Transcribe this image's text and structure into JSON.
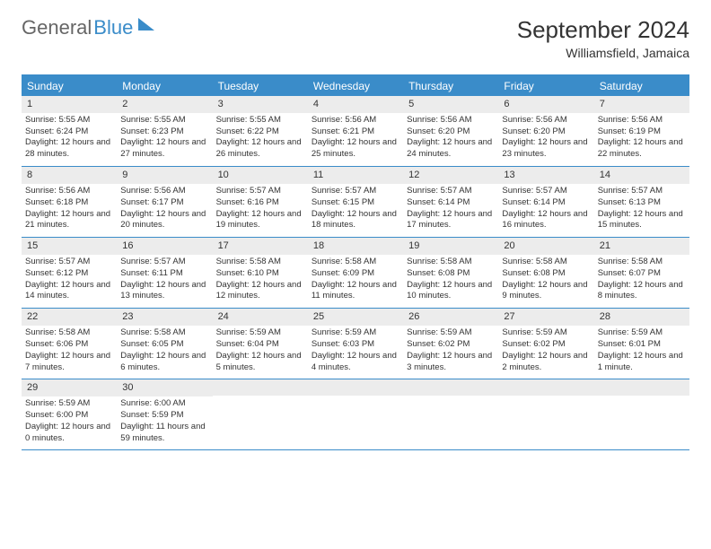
{
  "brand": {
    "general": "General",
    "blue": "Blue"
  },
  "title": "September 2024",
  "location": "Williamsfield, Jamaica",
  "colors": {
    "accent": "#3a8cc9",
    "dayHeaderBg": "#ececec",
    "background": "#ffffff",
    "text": "#333333"
  },
  "daysOfWeek": [
    "Sunday",
    "Monday",
    "Tuesday",
    "Wednesday",
    "Thursday",
    "Friday",
    "Saturday"
  ],
  "calendar": {
    "firstDayIndex": 0,
    "numDays": 30,
    "cells": [
      {
        "n": 1,
        "sunrise": "5:55 AM",
        "sunset": "6:24 PM",
        "daylight": "12 hours and 28 minutes."
      },
      {
        "n": 2,
        "sunrise": "5:55 AM",
        "sunset": "6:23 PM",
        "daylight": "12 hours and 27 minutes."
      },
      {
        "n": 3,
        "sunrise": "5:55 AM",
        "sunset": "6:22 PM",
        "daylight": "12 hours and 26 minutes."
      },
      {
        "n": 4,
        "sunrise": "5:56 AM",
        "sunset": "6:21 PM",
        "daylight": "12 hours and 25 minutes."
      },
      {
        "n": 5,
        "sunrise": "5:56 AM",
        "sunset": "6:20 PM",
        "daylight": "12 hours and 24 minutes."
      },
      {
        "n": 6,
        "sunrise": "5:56 AM",
        "sunset": "6:20 PM",
        "daylight": "12 hours and 23 minutes."
      },
      {
        "n": 7,
        "sunrise": "5:56 AM",
        "sunset": "6:19 PM",
        "daylight": "12 hours and 22 minutes."
      },
      {
        "n": 8,
        "sunrise": "5:56 AM",
        "sunset": "6:18 PM",
        "daylight": "12 hours and 21 minutes."
      },
      {
        "n": 9,
        "sunrise": "5:56 AM",
        "sunset": "6:17 PM",
        "daylight": "12 hours and 20 minutes."
      },
      {
        "n": 10,
        "sunrise": "5:57 AM",
        "sunset": "6:16 PM",
        "daylight": "12 hours and 19 minutes."
      },
      {
        "n": 11,
        "sunrise": "5:57 AM",
        "sunset": "6:15 PM",
        "daylight": "12 hours and 18 minutes."
      },
      {
        "n": 12,
        "sunrise": "5:57 AM",
        "sunset": "6:14 PM",
        "daylight": "12 hours and 17 minutes."
      },
      {
        "n": 13,
        "sunrise": "5:57 AM",
        "sunset": "6:14 PM",
        "daylight": "12 hours and 16 minutes."
      },
      {
        "n": 14,
        "sunrise": "5:57 AM",
        "sunset": "6:13 PM",
        "daylight": "12 hours and 15 minutes."
      },
      {
        "n": 15,
        "sunrise": "5:57 AM",
        "sunset": "6:12 PM",
        "daylight": "12 hours and 14 minutes."
      },
      {
        "n": 16,
        "sunrise": "5:57 AM",
        "sunset": "6:11 PM",
        "daylight": "12 hours and 13 minutes."
      },
      {
        "n": 17,
        "sunrise": "5:58 AM",
        "sunset": "6:10 PM",
        "daylight": "12 hours and 12 minutes."
      },
      {
        "n": 18,
        "sunrise": "5:58 AM",
        "sunset": "6:09 PM",
        "daylight": "12 hours and 11 minutes."
      },
      {
        "n": 19,
        "sunrise": "5:58 AM",
        "sunset": "6:08 PM",
        "daylight": "12 hours and 10 minutes."
      },
      {
        "n": 20,
        "sunrise": "5:58 AM",
        "sunset": "6:08 PM",
        "daylight": "12 hours and 9 minutes."
      },
      {
        "n": 21,
        "sunrise": "5:58 AM",
        "sunset": "6:07 PM",
        "daylight": "12 hours and 8 minutes."
      },
      {
        "n": 22,
        "sunrise": "5:58 AM",
        "sunset": "6:06 PM",
        "daylight": "12 hours and 7 minutes."
      },
      {
        "n": 23,
        "sunrise": "5:58 AM",
        "sunset": "6:05 PM",
        "daylight": "12 hours and 6 minutes."
      },
      {
        "n": 24,
        "sunrise": "5:59 AM",
        "sunset": "6:04 PM",
        "daylight": "12 hours and 5 minutes."
      },
      {
        "n": 25,
        "sunrise": "5:59 AM",
        "sunset": "6:03 PM",
        "daylight": "12 hours and 4 minutes."
      },
      {
        "n": 26,
        "sunrise": "5:59 AM",
        "sunset": "6:02 PM",
        "daylight": "12 hours and 3 minutes."
      },
      {
        "n": 27,
        "sunrise": "5:59 AM",
        "sunset": "6:02 PM",
        "daylight": "12 hours and 2 minutes."
      },
      {
        "n": 28,
        "sunrise": "5:59 AM",
        "sunset": "6:01 PM",
        "daylight": "12 hours and 1 minute."
      },
      {
        "n": 29,
        "sunrise": "5:59 AM",
        "sunset": "6:00 PM",
        "daylight": "12 hours and 0 minutes."
      },
      {
        "n": 30,
        "sunrise": "6:00 AM",
        "sunset": "5:59 PM",
        "daylight": "11 hours and 59 minutes."
      }
    ]
  },
  "labels": {
    "sunrise": "Sunrise: ",
    "sunset": "Sunset: ",
    "daylight": "Daylight: "
  }
}
